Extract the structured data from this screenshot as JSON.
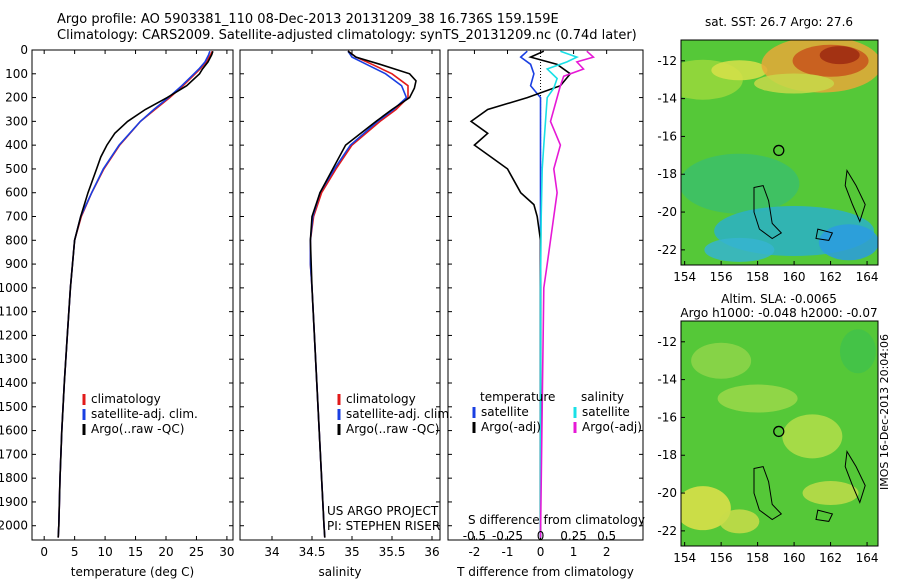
{
  "header": {
    "line1": "Argo profile: AO 5903381_110 08-Dec-2013 20131209_38 16.736S 159.159E",
    "line2": "Climatology: CARS2009. Satellite-adjusted climatology: synTS_20131209.nc (0.74d later)"
  },
  "side_label": "IMOS 16-Dec-2013 20:04:06",
  "colors": {
    "clim": "#e21a1a",
    "sat": "#1a3fe2",
    "argo": "#000000",
    "sat_s": "#19e0e6",
    "argo_s": "#e619d6"
  },
  "chart_data": [
    {
      "type": "line",
      "name": "temperature-panel",
      "xlabel": "temperature (deg C)",
      "ylabel": "",
      "xlim": [
        -2,
        31
      ],
      "ylim": [
        2060,
        0
      ],
      "xticks": [
        0,
        5,
        10,
        15,
        20,
        25,
        30
      ],
      "yticks": [
        0,
        100,
        200,
        300,
        400,
        500,
        600,
        700,
        800,
        900,
        1000,
        1100,
        1200,
        1300,
        1400,
        1500,
        1600,
        1700,
        1800,
        1900,
        2000
      ],
      "legend": [
        "climatology",
        "satellite-adj. clim.",
        "Argo(..raw -QC)"
      ],
      "series": [
        {
          "name": "climatology",
          "color_key": "clim",
          "depth": [
            5,
            20,
            50,
            80,
            100,
            150,
            200,
            250,
            300,
            400,
            500,
            600,
            700,
            800,
            1000,
            1200,
            1400,
            1600,
            1800,
            2000,
            2050
          ],
          "values": [
            27.6,
            27.3,
            26.6,
            25.6,
            24.8,
            22.8,
            20.6,
            18.2,
            15.8,
            12.4,
            9.8,
            7.8,
            6.1,
            5.0,
            4.3,
            3.8,
            3.3,
            2.9,
            2.6,
            2.4,
            2.3
          ]
        },
        {
          "name": "satellite-adj. clim.",
          "color_key": "sat",
          "depth": [
            5,
            20,
            50,
            80,
            100,
            150,
            200,
            250,
            300,
            400,
            500,
            600,
            700,
            800,
            1000,
            1200,
            1400,
            1600,
            1800,
            2000,
            2050
          ],
          "values": [
            27.2,
            27.0,
            26.4,
            25.4,
            24.6,
            22.6,
            20.4,
            18.0,
            15.8,
            12.3,
            9.7,
            7.8,
            6.0,
            5.0,
            4.3,
            3.8,
            3.3,
            2.9,
            2.6,
            2.4,
            2.3
          ]
        },
        {
          "name": "Argo(..raw -QC)",
          "color_key": "argo",
          "depth": [
            5,
            20,
            50,
            80,
            100,
            150,
            200,
            250,
            300,
            350,
            400,
            450,
            500,
            600,
            700,
            800,
            1000,
            1200,
            1400,
            1600,
            1800,
            2000,
            2050
          ],
          "values": [
            27.7,
            27.5,
            26.9,
            26.0,
            25.5,
            23.4,
            20.2,
            16.6,
            13.7,
            11.6,
            10.3,
            9.3,
            8.6,
            7.2,
            6.0,
            5.0,
            4.3,
            3.8,
            3.3,
            2.9,
            2.6,
            2.4,
            2.3
          ]
        }
      ]
    },
    {
      "type": "line",
      "name": "salinity-panel",
      "xlabel": "salinity",
      "xlim": [
        33.6,
        36.1
      ],
      "ylim": [
        2060,
        0
      ],
      "xticks": [
        34,
        34.5,
        35,
        35.5,
        36
      ],
      "legend": [
        "climatology",
        "satellite-adj. clim.",
        "Argo(..raw -QC)"
      ],
      "annotations": [
        "US ARGO PROJECT",
        "PI: STEPHEN RISER"
      ],
      "series": [
        {
          "name": "climatology",
          "color_key": "clim",
          "depth": [
            5,
            30,
            60,
            100,
            150,
            200,
            250,
            300,
            400,
            500,
            600,
            700,
            800,
            900,
            1000,
            1200,
            1400,
            1600,
            1800,
            2000,
            2050
          ],
          "values": [
            34.95,
            35.05,
            35.25,
            35.5,
            35.7,
            35.7,
            35.55,
            35.35,
            35.0,
            34.8,
            34.62,
            34.52,
            34.48,
            34.48,
            34.5,
            34.53,
            34.56,
            34.59,
            34.62,
            34.65,
            34.66
          ]
        },
        {
          "name": "satellite-adj. clim.",
          "color_key": "sat",
          "depth": [
            5,
            30,
            60,
            100,
            150,
            200,
            250,
            300,
            400,
            500,
            600,
            700,
            800,
            900,
            1000,
            1200,
            1400,
            1600,
            1800,
            2000,
            2050
          ],
          "values": [
            34.95,
            35.0,
            35.18,
            35.42,
            35.62,
            35.68,
            35.52,
            35.32,
            34.98,
            34.78,
            34.6,
            34.51,
            34.48,
            34.48,
            34.5,
            34.53,
            34.56,
            34.59,
            34.62,
            34.65,
            34.66
          ]
        },
        {
          "name": "Argo(..raw -QC)",
          "color_key": "argo",
          "depth": [
            5,
            30,
            60,
            100,
            130,
            160,
            200,
            250,
            300,
            400,
            500,
            600,
            700,
            800,
            900,
            1000,
            1200,
            1400,
            1600,
            1800,
            2000,
            2050
          ],
          "values": [
            34.95,
            35.05,
            35.35,
            35.72,
            35.8,
            35.78,
            35.72,
            35.5,
            35.3,
            34.92,
            34.76,
            34.6,
            34.5,
            34.48,
            34.49,
            34.5,
            34.53,
            34.56,
            34.59,
            34.62,
            34.65,
            34.66
          ]
        }
      ]
    },
    {
      "type": "line",
      "name": "difference-panel",
      "xlabel": "T difference from climatology",
      "xlabel_top": "S difference from climatology",
      "xlim": [
        -2.8,
        3.1
      ],
      "ylim": [
        2060,
        0
      ],
      "xticks": [
        -2,
        -1,
        0,
        1,
        2
      ],
      "s_xtick_labels": [
        "-0.5",
        "-0.25",
        "0",
        "0.25",
        "0.5"
      ],
      "s_xticks_at": [
        -2,
        -1,
        0,
        1,
        2
      ],
      "legend": {
        "col1_title": "temperature",
        "col2_title": "salinity",
        "items": [
          "satellite",
          "Argo(-adj)",
          "satellite",
          "Argo(-adj)"
        ]
      },
      "series": [
        {
          "name": "satellite",
          "color_key": "sat",
          "quantity": "T",
          "depth": [
            5,
            30,
            60,
            100,
            150,
            200,
            250,
            300,
            400,
            500,
            700,
            1000,
            2050
          ],
          "values": [
            -0.4,
            -0.6,
            -0.3,
            -0.2,
            -0.3,
            0.0,
            0.0,
            0.0,
            0.0,
            0.0,
            0.0,
            0.0,
            0.0
          ]
        },
        {
          "name": "Argo(-adj)",
          "color_key": "argo",
          "quantity": "T",
          "depth": [
            5,
            30,
            60,
            100,
            150,
            200,
            250,
            300,
            350,
            400,
            450,
            500,
            550,
            600,
            650,
            700,
            800,
            1000,
            1200,
            2050
          ],
          "values": [
            0.1,
            -0.3,
            0.5,
            0.9,
            0.6,
            -0.4,
            -1.6,
            -2.1,
            -1.6,
            -2.0,
            -1.5,
            -1.0,
            -0.8,
            -0.6,
            -0.2,
            -0.1,
            0.0,
            0.0,
            0.0,
            0.0
          ]
        },
        {
          "name": "satellite",
          "color_key": "sat_s",
          "quantity": "S",
          "depth": [
            5,
            30,
            50,
            80,
            120,
            160,
            200,
            300,
            400,
            500,
            700,
            1000,
            2050
          ],
          "values": [
            0.6,
            1.1,
            0.8,
            0.2,
            0.5,
            0.4,
            0.2,
            0.15,
            0.1,
            0.05,
            0.02,
            0.0,
            0.0
          ]
        },
        {
          "name": "Argo(-adj)",
          "color_key": "argo_s",
          "quantity": "S",
          "depth": [
            5,
            30,
            50,
            80,
            110,
            150,
            200,
            300,
            400,
            500,
            600,
            700,
            800,
            900,
            1000,
            1500,
            2050
          ],
          "values": [
            1.4,
            1.6,
            1.1,
            1.3,
            0.7,
            0.6,
            0.5,
            0.3,
            0.6,
            0.4,
            0.5,
            0.4,
            0.3,
            0.2,
            0.1,
            0.05,
            0.0
          ]
        }
      ]
    },
    {
      "type": "heatmap",
      "name": "sst-map",
      "title": "sat. SST: 26.7  Argo: 27.6",
      "xticks": [
        154,
        156,
        158,
        160,
        162,
        164
      ],
      "yticks": [
        -12,
        -14,
        -16,
        -18,
        -20,
        -22
      ],
      "xlim": [
        153.8,
        164.6
      ],
      "ylim": [
        -22.8,
        -10.9
      ],
      "marker": {
        "lon": 159.16,
        "lat": -16.74
      }
    },
    {
      "type": "heatmap",
      "name": "sla-map",
      "title": "Altim. SLA: -0.0065",
      "subtitle": "Argo h1000: -0.048 h2000: -0.07",
      "xticks": [
        154,
        156,
        158,
        160,
        162,
        164
      ],
      "yticks": [
        -12,
        -14,
        -16,
        -18,
        -20,
        -22
      ],
      "xlim": [
        153.8,
        164.6
      ],
      "ylim": [
        -22.8,
        -10.9
      ],
      "marker": {
        "lon": 159.16,
        "lat": -16.74
      }
    }
  ]
}
